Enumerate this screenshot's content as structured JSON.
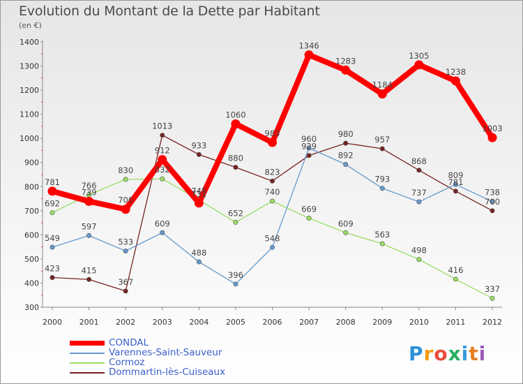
{
  "title": "Evolution du Montant de la Dette par Habitant",
  "unit": "(en €)",
  "logo": {
    "letters": [
      "P",
      "r",
      "o",
      "x",
      "i",
      "t",
      "i"
    ],
    "colors": [
      "#2d8fd8",
      "#f39c12",
      "#e74c3c",
      "#27ae60",
      "#3498db",
      "#e67e22",
      "#9b59b6"
    ]
  },
  "chart_data": {
    "type": "line",
    "title": "Evolution du Montant de la Dette par Habitant",
    "ylabel": "(en €)",
    "xlabel": "",
    "x": [
      "2000",
      "2001",
      "2002",
      "2003",
      "2004",
      "2005",
      "2006",
      "2007",
      "2008",
      "2009",
      "2010",
      "2011",
      "2012"
    ],
    "ylim": [
      300,
      1400
    ],
    "yticks": [
      300,
      400,
      500,
      600,
      700,
      800,
      900,
      1000,
      1100,
      1200,
      1300,
      1400
    ],
    "grid": false,
    "legend_position": "bottom-left",
    "series": [
      {
        "name": "CONDAL",
        "color": "#ff0000",
        "values": [
          781,
          739,
          706,
          912,
          732,
          1060,
          983,
          1346,
          1283,
          1184,
          1305,
          1238,
          1003
        ],
        "labels": [
          "781",
          "739",
          "706",
          "912",
          "732",
          "1060",
          "983",
          "1346",
          "1283",
          "1184",
          "1305",
          "1238",
          "1003"
        ]
      },
      {
        "name": "Varennes-Saint-Sauveur",
        "color": "#6699cc",
        "values": [
          549,
          597,
          533,
          609,
          488,
          396,
          548,
          960,
          892,
          793,
          737,
          809,
          738
        ],
        "labels": [
          "549",
          "597",
          "533",
          "609",
          "488",
          "396",
          "548",
          "960",
          "892",
          "793",
          "737",
          "809",
          "738"
        ]
      },
      {
        "name": "Cormoz",
        "color": "#99dd66",
        "values": [
          692,
          766,
          830,
          832,
          745,
          652,
          740,
          669,
          609,
          563,
          498,
          416,
          337
        ],
        "labels": [
          "692",
          "766",
          "830",
          "832",
          "745",
          "652",
          "740",
          "669",
          "609",
          "563",
          "498",
          "416",
          "337"
        ]
      },
      {
        "name": "Dommartin-lès-Cuiseaux",
        "color": "#772222",
        "values": [
          423,
          415,
          367,
          1013,
          933,
          880,
          823,
          929,
          980,
          957,
          868,
          781,
          700
        ],
        "labels": [
          "423",
          "415",
          "367",
          "1013",
          "933",
          "880",
          "823",
          "929",
          "980",
          "957",
          "868",
          "781",
          "700"
        ]
      }
    ]
  }
}
